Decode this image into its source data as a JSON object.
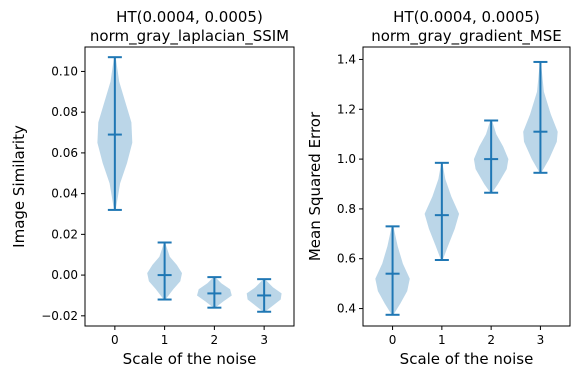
{
  "chart_data": [
    {
      "type": "violin",
      "title": "HT(0.0004, 0.0005)",
      "subtitle": "norm_gray_laplacian_SSIM",
      "xlabel": "Scale of the noise",
      "ylabel": "Image Similarity",
      "categories": [
        "0",
        "1",
        "2",
        "3"
      ],
      "ylim": [
        -0.025,
        0.112
      ],
      "yticks": [
        -0.02,
        0.0,
        0.02,
        0.04,
        0.06,
        0.08,
        0.1
      ],
      "ytick_labels": [
        "−0.02",
        "0.00",
        "0.02",
        "0.04",
        "0.06",
        "0.08",
        "0.10"
      ],
      "series": [
        {
          "min": 0.032,
          "median": 0.069,
          "max": 0.107,
          "density": [
            [
              0.032,
              0.05
            ],
            [
              0.045,
              0.3
            ],
            [
              0.055,
              0.7
            ],
            [
              0.065,
              1.0
            ],
            [
              0.075,
              0.95
            ],
            [
              0.085,
              0.6
            ],
            [
              0.095,
              0.25
            ],
            [
              0.107,
              0.05
            ]
          ]
        },
        {
          "min": -0.012,
          "median": 0.0,
          "max": 0.016,
          "density": [
            [
              -0.012,
              0.05
            ],
            [
              -0.007,
              0.5
            ],
            [
              -0.003,
              0.9
            ],
            [
              0.001,
              1.0
            ],
            [
              0.005,
              0.7
            ],
            [
              0.009,
              0.3
            ],
            [
              0.016,
              0.03
            ]
          ]
        },
        {
          "min": -0.016,
          "median": -0.009,
          "max": -0.001,
          "density": [
            [
              -0.016,
              0.05
            ],
            [
              -0.013,
              0.5
            ],
            [
              -0.01,
              1.0
            ],
            [
              -0.007,
              0.9
            ],
            [
              -0.004,
              0.4
            ],
            [
              -0.001,
              0.05
            ]
          ]
        },
        {
          "min": -0.018,
          "median": -0.01,
          "max": -0.002,
          "density": [
            [
              -0.018,
              0.05
            ],
            [
              -0.015,
              0.5
            ],
            [
              -0.012,
              0.95
            ],
            [
              -0.009,
              1.0
            ],
            [
              -0.006,
              0.5
            ],
            [
              -0.002,
              0.05
            ]
          ]
        }
      ]
    },
    {
      "type": "violin",
      "title": "HT(0.0004, 0.0005)",
      "subtitle": "norm_gray_gradient_MSE",
      "xlabel": "Scale of the noise",
      "ylabel": "Mean Squared Error",
      "categories": [
        "0",
        "1",
        "2",
        "3"
      ],
      "ylim": [
        0.33,
        1.45
      ],
      "yticks": [
        0.4,
        0.6,
        0.8,
        1.0,
        1.2,
        1.4
      ],
      "ytick_labels": [
        "0.4",
        "0.6",
        "0.8",
        "1.0",
        "1.2",
        "1.4"
      ],
      "series": [
        {
          "min": 0.375,
          "median": 0.54,
          "max": 0.73,
          "density": [
            [
              0.375,
              0.05
            ],
            [
              0.42,
              0.45
            ],
            [
              0.47,
              0.85
            ],
            [
              0.52,
              1.0
            ],
            [
              0.58,
              0.6
            ],
            [
              0.65,
              0.3
            ],
            [
              0.73,
              0.05
            ]
          ]
        },
        {
          "min": 0.595,
          "median": 0.775,
          "max": 0.985,
          "density": [
            [
              0.595,
              0.05
            ],
            [
              0.65,
              0.35
            ],
            [
              0.72,
              0.75
            ],
            [
              0.78,
              1.0
            ],
            [
              0.85,
              0.55
            ],
            [
              0.92,
              0.2
            ],
            [
              0.985,
              0.03
            ]
          ]
        },
        {
          "min": 0.865,
          "median": 1.0,
          "max": 1.155,
          "density": [
            [
              0.865,
              0.05
            ],
            [
              0.9,
              0.4
            ],
            [
              0.96,
              0.9
            ],
            [
              1.0,
              1.0
            ],
            [
              1.05,
              0.7
            ],
            [
              1.1,
              0.3
            ],
            [
              1.155,
              0.05
            ]
          ]
        },
        {
          "min": 0.945,
          "median": 1.11,
          "max": 1.39,
          "density": [
            [
              0.945,
              0.05
            ],
            [
              1.0,
              0.5
            ],
            [
              1.07,
              0.95
            ],
            [
              1.11,
              1.0
            ],
            [
              1.18,
              0.6
            ],
            [
              1.27,
              0.2
            ],
            [
              1.39,
              0.03
            ]
          ]
        }
      ]
    }
  ]
}
